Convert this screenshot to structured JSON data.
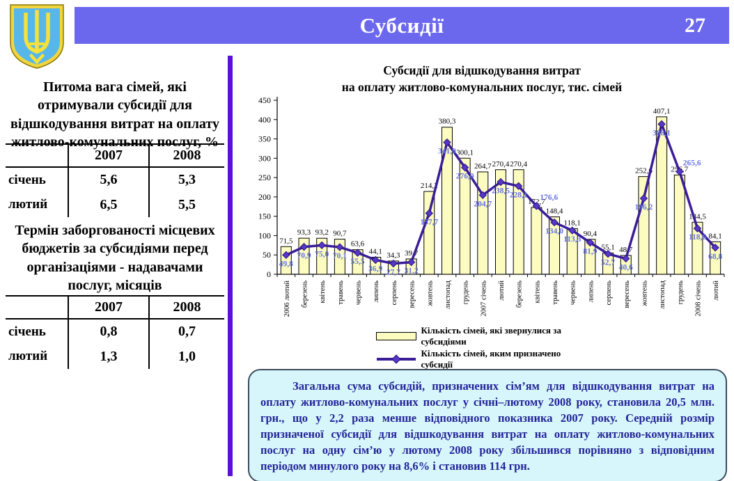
{
  "header": {
    "title": "Субсидії",
    "page_number": "27"
  },
  "left_panel": {
    "table1": {
      "title": "Питома вага сімей, які отримували субсидії для відшкодування витрат на оплату житлово-комунальних послуг, %",
      "columns": [
        "",
        "2007",
        "2008"
      ],
      "rows": [
        {
          "label": "січень",
          "v2007": "5,6",
          "v2008": "5,3"
        },
        {
          "label": "лютий",
          "v2007": "6,5",
          "v2008": "5,5"
        }
      ]
    },
    "table2": {
      "title": "Термін заборгованості місцевих бюджетів за субсидіями перед організаціями - надавачами послуг, місяців",
      "columns": [
        "",
        "2007",
        "2008"
      ],
      "rows": [
        {
          "label": "січень",
          "v2007": "0,8",
          "v2008": "0,7"
        },
        {
          "label": "лютий",
          "v2007": "1,3",
          "v2008": "1,0"
        }
      ]
    }
  },
  "chart_data": {
    "type": "bar",
    "title_line1": "Субсидії для відшкодування витрат",
    "title_line2": "на оплату житлово-комунальних послуг, тис. сімей",
    "categories": [
      "2006 лютий",
      "березень",
      "квітень",
      "травень",
      "червень",
      "липень",
      "серпень",
      "вересень",
      "жовтень",
      "листопад",
      "грудень",
      "2007 січень",
      "лютий",
      "березень",
      "квітень",
      "травень",
      "червень",
      "липень",
      "серпень",
      "вересень",
      "жовтень",
      "листопад",
      "грудень",
      "2008 січень",
      "лютий"
    ],
    "series": [
      {
        "name": "Кількість сімей, які звернулися за субсидіями",
        "type": "bar",
        "color": "#FCFCC0",
        "values": [
          71.5,
          93.3,
          93.2,
          90.7,
          63.6,
          44.1,
          34.3,
          39.7,
          214.2,
          380.3,
          300.1,
          264.7,
          270.4,
          270.4,
          172.7,
          148.4,
          118.1,
          90.4,
          55.1,
          48.7,
          252.6,
          407.1,
          256.7,
          134.5,
          84.1
        ]
      },
      {
        "name": "Кількість сімей, яким призначено субсидії",
        "type": "line",
        "color": "#3A1D97",
        "marker_color": "#5638C8",
        "label_color": "#6672E4",
        "values": [
          49.8,
          70.9,
          75.0,
          70.1,
          55.5,
          36.9,
          27.7,
          31.2,
          157.7,
          341.0,
          276.0,
          204.7,
          238.5,
          228.1,
          176.6,
          134.0,
          113.3,
          81.9,
          52.7,
          40.6,
          196.2,
          388.1,
          265.6,
          118.6,
          68.8
        ]
      }
    ],
    "ylim": [
      0,
      450
    ],
    "ytick_step": 50,
    "grid": false,
    "legend_position": "bottom",
    "decimal_separator": ","
  },
  "summary_box": {
    "text": "Загальна сума субсидій, призначених сім’ям для відшкодування витрат на оплату житлово-комунальних послуг у січні–лютому 2008 року, становила 20,5 млн. грн., що у 2,2 раза менше відповідного показника 2007 року. Середній розмір призначеної субсидії для відшкодування витрат на оплату житлово-комунальних послуг на одну сім’ю у лютому 2008 року збільшився  порівняно з відповідним періодом минулого року на 8,6% і становив 114 грн."
  },
  "colors": {
    "header_bar": "#6C68EE",
    "divider": "#5B0FD9",
    "bar_fill": "#FCFCC0",
    "line": "#3A1D97",
    "marker": "#5638C8",
    "value_label_line": "#6672E4",
    "summary_bg": "#D6F6FB",
    "summary_text": "#232398"
  }
}
